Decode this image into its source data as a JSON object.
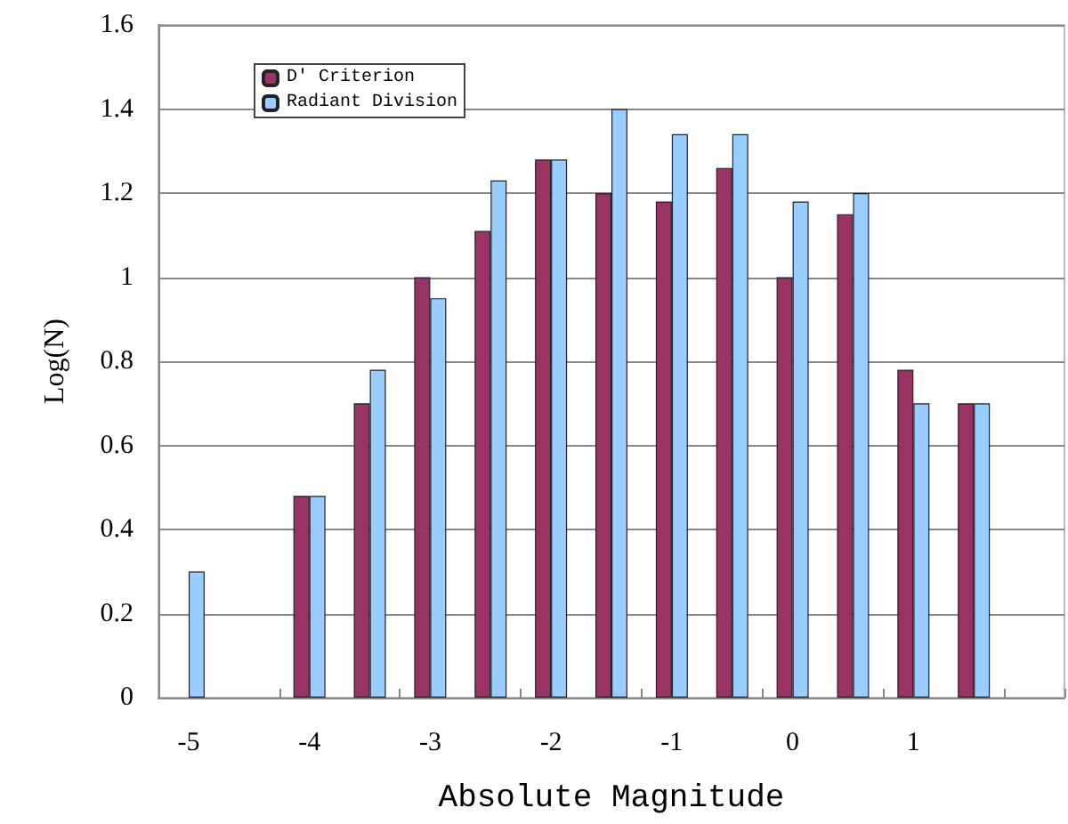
{
  "chart_data": {
    "type": "bar",
    "xlabel": "Absolute Magnitude",
    "ylabel": "Log(N)",
    "categories": [
      "-5",
      null,
      "-4",
      null,
      "-3",
      null,
      "-2",
      null,
      "-1",
      null,
      "0",
      null,
      "1",
      null,
      null
    ],
    "series": [
      {
        "name": "D' Criterion",
        "color": "#993366",
        "values": [
          null,
          null,
          0.48,
          0.7,
          1.0,
          1.11,
          1.28,
          1.2,
          1.18,
          1.26,
          1.0,
          1.15,
          0.78,
          0.7,
          null
        ]
      },
      {
        "name": "Radiant Division",
        "color": "#99ccff",
        "values": [
          0.3,
          null,
          0.48,
          0.78,
          0.95,
          1.23,
          1.28,
          1.4,
          1.34,
          1.34,
          1.18,
          1.2,
          0.7,
          0.7,
          null
        ]
      }
    ],
    "ylim": [
      0,
      1.6
    ],
    "yticks": [
      0,
      0.2,
      0.4,
      0.6,
      0.8,
      1,
      1.2,
      1.4,
      1.6
    ],
    "grid": "y",
    "legend": "top left"
  }
}
